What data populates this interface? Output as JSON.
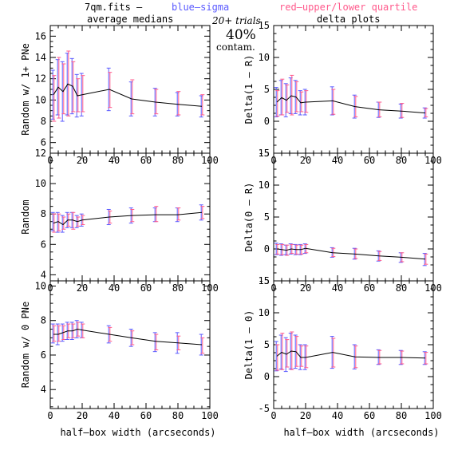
{
  "header": {
    "file_label": "7qm.fits  –",
    "sigma_legend": "blue–sigma",
    "quartile_legend": "red–upper/lower quartile",
    "col1_title": "average medians",
    "col2_title": "delta plots",
    "trials_label": "20+ trials",
    "contam_percent": "40%",
    "contam_label": "contam."
  },
  "colors": {
    "sigma": "#5a5aff",
    "quartile": "#ff5a8c",
    "line": "#000000",
    "axis": "#000000"
  },
  "chart_data": [
    {
      "type": "line",
      "panel": "top-left",
      "title": "average medians",
      "ylabel": "Random w/ 1+ PNe",
      "xlabel": "",
      "xlim": [
        0,
        100
      ],
      "ylim": [
        5,
        17
      ],
      "xticks": [
        0,
        20,
        40,
        60,
        80,
        100
      ],
      "yticks": [
        6,
        8,
        10,
        12,
        14,
        16
      ],
      "x": [
        2,
        5,
        8,
        11,
        14,
        17,
        20,
        37,
        51,
        66,
        80,
        95
      ],
      "y": [
        10.5,
        11.2,
        10.8,
        11.5,
        11.3,
        10.4,
        10.5,
        11.0,
        10.1,
        9.8,
        9.6,
        9.4
      ],
      "sigma_low": [
        8.2,
        8.6,
        8.0,
        8.6,
        8.7,
        8.4,
        8.5,
        9.0,
        8.5,
        8.5,
        8.5,
        8.4
      ],
      "sigma_high": [
        12.8,
        13.8,
        13.6,
        14.4,
        13.9,
        12.4,
        12.5,
        13.0,
        11.7,
        11.1,
        10.7,
        10.4
      ],
      "q_low": [
        8.0,
        8.3,
        8.7,
        8.5,
        8.9,
        8.9,
        8.9,
        9.3,
        8.7,
        8.7,
        8.6,
        8.6
      ],
      "q_high": [
        12.3,
        14.0,
        13.4,
        14.6,
        13.6,
        12.0,
        12.3,
        12.6,
        11.9,
        11.0,
        10.8,
        10.5
      ]
    },
    {
      "type": "line",
      "panel": "top-right",
      "title": "delta plots",
      "ylabel": "Delta(1 – R)",
      "xlabel": "",
      "xlim": [
        0,
        100
      ],
      "ylim": [
        -5,
        15
      ],
      "xticks": [
        0,
        20,
        40,
        60,
        80,
        100
      ],
      "yticks": [
        -5,
        0,
        5,
        10,
        15
      ],
      "x": [
        2,
        5,
        8,
        11,
        14,
        17,
        20,
        37,
        51,
        66,
        80,
        95
      ],
      "y": [
        3.0,
        3.7,
        3.3,
        4.0,
        3.8,
        2.9,
        3.0,
        3.2,
        2.3,
        1.8,
        1.6,
        1.3
      ],
      "sigma_low": [
        0.7,
        1.0,
        0.7,
        1.2,
        1.2,
        1.0,
        1.0,
        1.0,
        0.5,
        0.6,
        0.5,
        0.5
      ],
      "sigma_high": [
        5.3,
        6.4,
        5.9,
        6.8,
        6.4,
        4.8,
        5.0,
        5.4,
        4.1,
        3.0,
        2.7,
        2.1
      ],
      "q_low": [
        0.8,
        1.0,
        1.4,
        1.0,
        1.5,
        1.5,
        1.4,
        1.1,
        0.7,
        0.7,
        0.6,
        0.7
      ],
      "q_high": [
        4.8,
        6.6,
        5.7,
        7.2,
        6.2,
        4.6,
        4.8,
        5.0,
        3.9,
        3.0,
        2.8,
        2.0
      ]
    },
    {
      "type": "line",
      "panel": "middle-left",
      "ylabel": "Random",
      "xlabel": "",
      "xlim": [
        0,
        100
      ],
      "ylim": [
        3.6,
        12
      ],
      "xticks": [
        0,
        20,
        40,
        60,
        80,
        100
      ],
      "yticks": [
        4,
        6,
        8,
        10,
        12
      ],
      "x": [
        2,
        5,
        8,
        11,
        14,
        17,
        20,
        37,
        51,
        66,
        80,
        95
      ],
      "y": [
        7.4,
        7.5,
        7.3,
        7.6,
        7.6,
        7.5,
        7.6,
        7.8,
        7.9,
        7.95,
        7.95,
        8.1
      ],
      "sigma_low": [
        6.9,
        6.8,
        6.8,
        7.1,
        7.1,
        7.1,
        7.2,
        7.3,
        7.4,
        7.5,
        7.5,
        7.6
      ],
      "sigma_high": [
        8.1,
        8.1,
        7.9,
        8.1,
        8.1,
        7.9,
        8.0,
        8.3,
        8.4,
        8.4,
        8.4,
        8.6
      ],
      "q_low": [
        6.8,
        6.9,
        7.0,
        7.2,
        7.0,
        7.2,
        7.3,
        7.4,
        7.5,
        7.5,
        7.6,
        7.7
      ],
      "q_high": [
        8.0,
        8.0,
        7.8,
        8.0,
        8.1,
        7.8,
        7.9,
        8.2,
        8.3,
        8.5,
        8.4,
        8.5
      ]
    },
    {
      "type": "line",
      "panel": "middle-right",
      "ylabel": "Delta(0 – R)",
      "xlabel": "",
      "xlim": [
        0,
        100
      ],
      "ylim": [
        -5,
        15
      ],
      "xticks": [
        0,
        20,
        40,
        60,
        80,
        100
      ],
      "yticks": [
        -5,
        0,
        5,
        10,
        15
      ],
      "x": [
        2,
        5,
        8,
        11,
        14,
        17,
        20,
        37,
        51,
        66,
        80,
        95
      ],
      "y": [
        0.0,
        -0.1,
        -0.2,
        0.0,
        -0.1,
        -0.1,
        0.1,
        -0.6,
        -0.8,
        -1.1,
        -1.3,
        -1.6
      ],
      "sigma_low": [
        -0.9,
        -1.0,
        -0.9,
        -0.8,
        -0.9,
        -0.9,
        -0.7,
        -1.3,
        -1.6,
        -1.9,
        -2.1,
        -2.6
      ],
      "sigma_high": [
        0.9,
        0.8,
        0.6,
        0.8,
        0.7,
        0.7,
        0.8,
        0.2,
        0.1,
        -0.3,
        -0.6,
        -0.7
      ],
      "q_low": [
        -0.8,
        -0.9,
        -1.0,
        -0.7,
        -0.8,
        -0.8,
        -0.6,
        -1.2,
        -1.5,
        -1.8,
        -2.0,
        -2.4
      ],
      "q_high": [
        0.7,
        0.7,
        0.6,
        0.7,
        0.6,
        0.6,
        0.7,
        0.1,
        0.0,
        -0.4,
        -0.6,
        -0.8
      ]
    },
    {
      "type": "line",
      "panel": "bottom-left",
      "ylabel": "Random w/ 0 PNe",
      "xlabel": "half–box width (arcseconds)",
      "xlim": [
        0,
        100
      ],
      "ylim": [
        2.9,
        10.3
      ],
      "xticks": [
        0,
        20,
        40,
        60,
        80,
        100
      ],
      "yticks": [
        4,
        6,
        8,
        10
      ],
      "x": [
        2,
        5,
        8,
        11,
        14,
        17,
        20,
        37,
        51,
        66,
        80,
        95
      ],
      "y": [
        7.2,
        7.2,
        7.3,
        7.4,
        7.4,
        7.5,
        7.45,
        7.2,
        7.0,
        6.8,
        6.7,
        6.6
      ],
      "sigma_low": [
        6.7,
        6.6,
        6.8,
        6.9,
        6.9,
        7.0,
        7.0,
        6.7,
        6.5,
        6.2,
        6.1,
        6.0
      ],
      "sigma_high": [
        7.8,
        7.8,
        7.8,
        7.9,
        7.9,
        8.0,
        7.9,
        7.7,
        7.5,
        7.3,
        7.3,
        7.2
      ],
      "q_low": [
        6.8,
        6.8,
        6.9,
        7.0,
        7.0,
        7.1,
        7.0,
        6.8,
        6.6,
        6.3,
        6.3,
        6.1
      ],
      "q_high": [
        7.7,
        7.7,
        7.7,
        7.8,
        7.8,
        7.9,
        7.8,
        7.6,
        7.4,
        7.2,
        7.1,
        7.0
      ]
    },
    {
      "type": "line",
      "panel": "bottom-right",
      "ylabel": "Delta(1 – 0)",
      "xlabel": "half–box width (arcseconds)",
      "xlim": [
        0,
        100
      ],
      "ylim": [
        -5,
        15
      ],
      "xticks": [
        0,
        20,
        40,
        60,
        80,
        100
      ],
      "yticks": [
        -5,
        0,
        5,
        10,
        15
      ],
      "x": [
        2,
        5,
        8,
        11,
        14,
        17,
        20,
        37,
        51,
        66,
        80,
        95
      ],
      "y": [
        3.2,
        3.8,
        3.5,
        4.0,
        3.9,
        3.0,
        3.0,
        3.8,
        3.1,
        3.0,
        3.0,
        2.9
      ],
      "sigma_low": [
        0.9,
        1.2,
        0.8,
        1.2,
        1.3,
        1.1,
        1.1,
        1.3,
        1.2,
        1.9,
        1.9,
        1.9
      ],
      "sigma_high": [
        5.5,
        6.5,
        6.1,
        6.8,
        6.5,
        5.0,
        5.0,
        6.3,
        5.0,
        4.2,
        4.1,
        3.9
      ],
      "q_low": [
        1.0,
        1.1,
        1.5,
        1.1,
        1.6,
        1.6,
        1.4,
        1.5,
        1.4,
        2.0,
        2.0,
        2.0
      ],
      "q_high": [
        5.0,
        6.8,
        5.8,
        7.0,
        6.3,
        4.8,
        4.8,
        6.0,
        4.8,
        4.1,
        4.0,
        3.8
      ]
    }
  ]
}
